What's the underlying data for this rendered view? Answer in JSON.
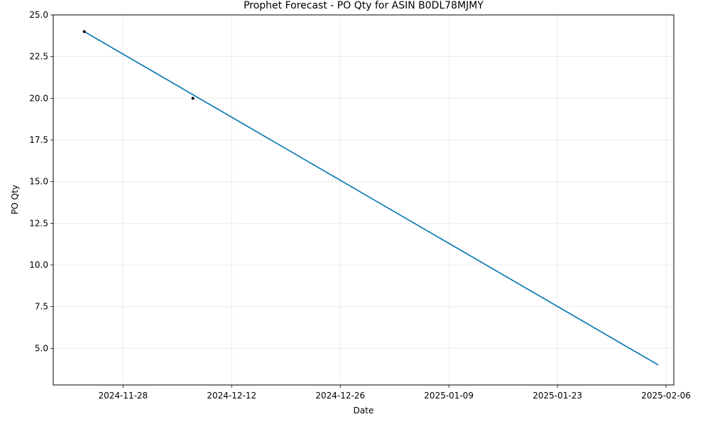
{
  "chart_data": {
    "type": "line",
    "title": "Prophet Forecast - PO Qty for ASIN B0DL78MJMY",
    "xlabel": "Date",
    "ylabel": "PO Qty",
    "x_tick_labels": [
      "2024-11-28",
      "2024-12-12",
      "2024-12-26",
      "2025-01-09",
      "2025-01-23",
      "2025-02-06"
    ],
    "y_tick_labels": [
      "5.0",
      "7.5",
      "10.0",
      "12.5",
      "15.0",
      "17.5",
      "20.0",
      "22.5",
      "25.0"
    ],
    "xlim": [
      "2024-11-19",
      "2025-02-07"
    ],
    "ylim": [
      2.8,
      25.0
    ],
    "grid": true,
    "series": [
      {
        "kind": "forecast",
        "color": "#0072B2",
        "x": [
          "2024-11-23",
          "2025-02-05"
        ],
        "y": [
          24.0,
          4.0
        ]
      },
      {
        "kind": "actual",
        "color": "#000000",
        "x": [
          "2024-11-23",
          "2024-12-07"
        ],
        "y": [
          24,
          20
        ]
      }
    ]
  }
}
